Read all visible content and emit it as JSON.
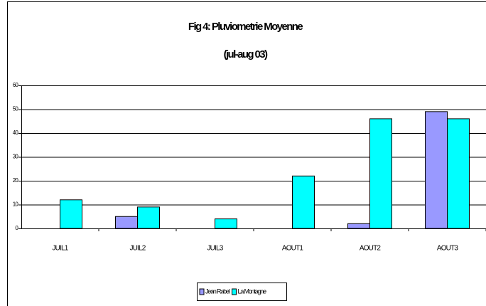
{
  "chart_data": {
    "type": "bar",
    "title": "Fig 4: Pluviometrie Moyenne",
    "subtitle": "(jul-aug 03)",
    "categories": [
      "JUIL1",
      "JUIL2",
      "JUIL3",
      "AOUT1",
      "AOUT2",
      "AOUT3"
    ],
    "series": [
      {
        "name": "Jean Rabel",
        "color": "#9999ff",
        "values": [
          0,
          5,
          0,
          0,
          2,
          49
        ]
      },
      {
        "name": "La Montagne",
        "color": "#00ffff",
        "values": [
          12,
          9,
          4,
          22,
          46,
          46
        ]
      }
    ],
    "ylim": [
      0,
      60
    ],
    "yticks": [
      0,
      10,
      20,
      30,
      40,
      50,
      60
    ],
    "grid": true
  }
}
